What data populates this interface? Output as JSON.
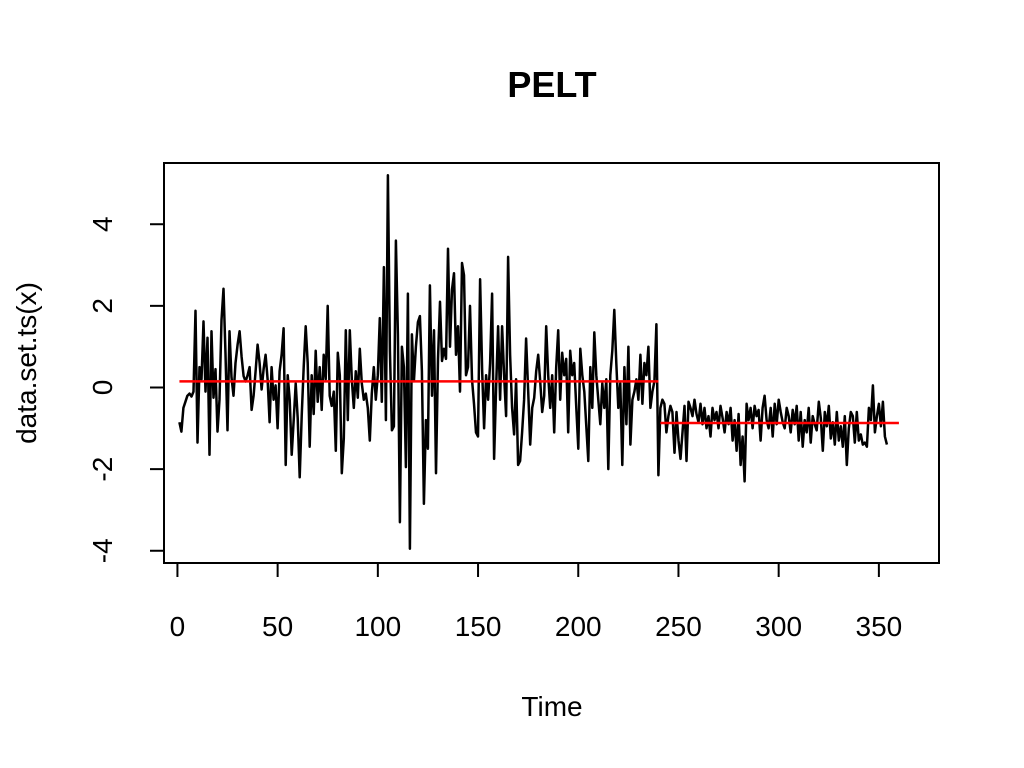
{
  "chart_data": {
    "type": "line",
    "title": "PELT",
    "xlabel": "Time",
    "ylabel": "data.set.ts(x)",
    "xlim": [
      -6.7,
      380
    ],
    "ylim": [
      -4.3,
      5.5
    ],
    "x_ticks": [
      0,
      50,
      100,
      150,
      200,
      250,
      300,
      350
    ],
    "y_ticks": [
      -4,
      -2,
      0,
      2,
      4
    ],
    "grid": false,
    "legend": "none",
    "colors": {
      "series": "#000000",
      "changepoint_means": "#ff0000"
    },
    "series": [
      {
        "x_start": 1,
        "values": [
          -0.85,
          -1.08,
          -0.5,
          -0.35,
          -0.2,
          -0.15,
          -0.22,
          -0.1,
          1.88,
          -1.35,
          0.5,
          0.2,
          1.62,
          -0.1,
          1.22,
          -1.65,
          1.38,
          -0.25,
          0.45,
          -1.08,
          -0.3,
          1.65,
          2.42,
          0.82,
          -1.05,
          1.38,
          0.25,
          -0.2,
          0.6,
          1.05,
          1.38,
          0.75,
          0.28,
          0.15,
          0.3,
          0.5,
          -0.55,
          -0.2,
          0.4,
          1.05,
          0.6,
          -0.05,
          0.45,
          0.8,
          0.2,
          -0.85,
          0.5,
          -0.3,
          0.05,
          -1.0,
          0.4,
          0.8,
          1.45,
          -1.9,
          0.3,
          -0.3,
          -1.65,
          -0.8,
          0.1,
          -0.75,
          -2.2,
          -0.7,
          0.5,
          1.5,
          0.6,
          -1.45,
          0.3,
          -0.65,
          0.9,
          -0.35,
          0.5,
          -0.55,
          0.8,
          0.2,
          2.0,
          -0.2,
          -0.45,
          -0.1,
          -1.55,
          0.85,
          0.3,
          -2.1,
          -1.25,
          1.4,
          -0.8,
          1.4,
          0.2,
          -0.5,
          0.4,
          -0.25,
          0.95,
          0.1,
          -0.3,
          -0.15,
          -0.5,
          -1.3,
          -0.15,
          0.5,
          -0.3,
          0.3,
          1.7,
          -0.35,
          2.95,
          -0.8,
          5.2,
          0.9,
          -1.05,
          -0.95,
          3.6,
          1.3,
          -3.3,
          1.0,
          0.5,
          -1.95,
          2.3,
          -3.95,
          1.3,
          0.15,
          1.0,
          1.6,
          1.75,
          0.4,
          -2.85,
          -0.8,
          -1.5,
          2.5,
          -0.2,
          1.4,
          -2.1,
          0.7,
          2.1,
          0.65,
          0.95,
          0.7,
          3.4,
          1.0,
          2.4,
          2.8,
          0.8,
          1.5,
          -0.1,
          3.05,
          2.75,
          0.3,
          0.5,
          2.0,
          0.2,
          -0.4,
          -1.1,
          -1.2,
          2.65,
          0.45,
          -1.0,
          0.3,
          -0.3,
          0.6,
          2.3,
          -1.75,
          0.0,
          1.5,
          -0.3,
          1.5,
          0.3,
          -0.7,
          3.2,
          0.8,
          -0.5,
          -1.15,
          0.2,
          -1.9,
          -1.8,
          -1.1,
          -0.3,
          1.2,
          -0.1,
          -1.4,
          -0.5,
          -0.25,
          0.4,
          0.8,
          0.15,
          -0.6,
          -0.2,
          1.5,
          0.3,
          -0.5,
          0.3,
          -1.1,
          0.5,
          1.4,
          -0.3,
          0.85,
          0.3,
          0.7,
          -1.1,
          0.9,
          0.3,
          0.6,
          -0.5,
          -1.5,
          0.95,
          0.3,
          -0.1,
          -0.95,
          -1.8,
          0.5,
          -0.5,
          1.35,
          0.3,
          -0.3,
          -0.9,
          0.1,
          -0.5,
          0.2,
          -2.0,
          0.3,
          0.9,
          1.9,
          0.6,
          -0.5,
          0.1,
          -1.9,
          0.5,
          -0.9,
          1.0,
          -1.4,
          -0.3,
          -0.1,
          0.2,
          -0.3,
          0.8,
          -0.4,
          0.6,
          0.3,
          1.0,
          -0.5,
          -0.1,
          0.15,
          1.55,
          -2.15,
          -0.5,
          -0.3,
          -0.4,
          -1.1,
          -0.7,
          -0.45,
          -0.6,
          -1.6,
          -0.6,
          -1.3,
          -1.75,
          -1.1,
          -0.45,
          -1.8,
          -0.35,
          -0.5,
          -0.7,
          -0.3,
          -0.65,
          -0.85,
          -0.4,
          -0.9,
          -0.5,
          -1.0,
          -0.7,
          -1.2,
          -0.5,
          -0.8,
          -0.6,
          -1.0,
          -0.45,
          -0.75,
          -1.1,
          -0.6,
          -0.9,
          -0.5,
          -1.3,
          -0.8,
          -1.55,
          -0.65,
          -1.9,
          -1.2,
          -2.3,
          -0.4,
          -0.8,
          -0.5,
          -1.0,
          -0.45,
          -0.7,
          -0.55,
          -1.3,
          -0.5,
          -0.2,
          -0.8,
          -1.0,
          -0.5,
          -1.2,
          -0.4,
          -0.9,
          -0.3,
          -0.6,
          -0.85,
          -1.0,
          -0.5,
          -0.7,
          -1.1,
          -0.55,
          -0.9,
          -0.45,
          -1.3,
          -0.6,
          -1.45,
          -0.8,
          -1.1,
          -0.5,
          -1.35,
          -0.7,
          -0.9,
          -1.05,
          -0.35,
          -0.75,
          -1.55,
          -0.6,
          -0.95,
          -0.45,
          -1.25,
          -0.85,
          -1.4,
          -0.6,
          -1.3,
          -0.95,
          -1.45,
          -0.7,
          -1.9,
          -1.0,
          -0.6,
          -0.7,
          -1.35,
          -0.6,
          -1.3,
          -1.15,
          -1.4,
          -1.35,
          -1.45,
          -0.5,
          -0.8,
          0.05,
          -1.1,
          -0.7,
          -0.4,
          -0.95,
          -0.35,
          -1.2,
          -1.4
        ]
      }
    ],
    "segments": [
      {
        "x_start": 1,
        "x_end": 240,
        "mean": 0.15
      },
      {
        "x_start": 241,
        "x_end": 360,
        "mean": -0.87
      }
    ]
  }
}
